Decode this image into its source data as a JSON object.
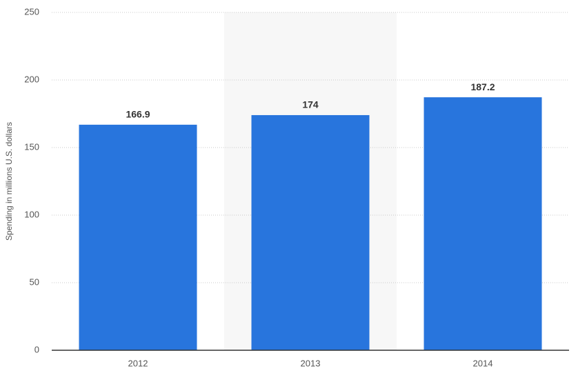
{
  "chart_data": {
    "type": "bar",
    "y_label": "Spending in millions U.S. dollars",
    "categories": [
      "2012",
      "2013",
      "2014"
    ],
    "values": [
      166.9,
      174,
      187.2
    ],
    "color": "#2875dd",
    "ylim": [
      0,
      250
    ],
    "yticks": [
      0,
      50,
      100,
      150,
      200,
      250
    ],
    "grid": true
  }
}
